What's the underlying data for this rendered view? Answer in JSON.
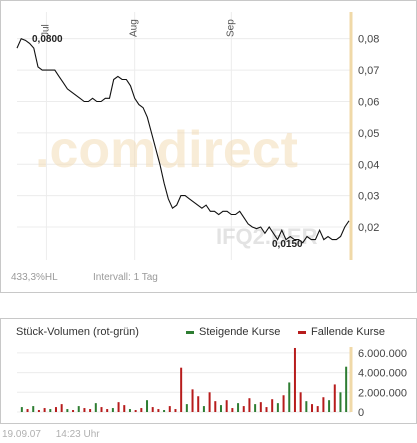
{
  "chart_data": [
    {
      "type": "line",
      "title": "",
      "x_ticks": [
        "Jul",
        "Aug",
        "Sep"
      ],
      "y_ticks": [
        "0,08",
        "0,07",
        "0,06",
        "0,05",
        "0,04",
        "0,03",
        "0,02"
      ],
      "ylim": [
        0.0095,
        0.0885
      ],
      "grid": true,
      "annotations": {
        "high": "0,0800",
        "low": "0,0150"
      },
      "series": [
        {
          "values": [
            0.077,
            0.08,
            0.0795,
            0.0785,
            0.077,
            0.071,
            0.07,
            0.07,
            0.07,
            0.07,
            0.068,
            0.066,
            0.064,
            0.063,
            0.062,
            0.061,
            0.06,
            0.06,
            0.061,
            0.06,
            0.06,
            0.061,
            0.061,
            0.067,
            0.068,
            0.067,
            0.067,
            0.065,
            0.061,
            0.059,
            0.058,
            0.055,
            0.05,
            0.045,
            0.04,
            0.034,
            0.029,
            0.026,
            0.027,
            0.03,
            0.03,
            0.029,
            0.028,
            0.027,
            0.026,
            0.027,
            0.025,
            0.025,
            0.024,
            0.025,
            0.025,
            0.024,
            0.024,
            0.025,
            0.023,
            0.021,
            0.02,
            0.0195,
            0.02,
            0.018,
            0.02,
            0.018,
            0.016,
            0.019,
            0.016,
            0.017,
            0.016,
            0.016,
            0.015,
            0.017,
            0.016,
            0.016,
            0.019,
            0.016,
            0.017,
            0.016,
            0.016,
            0.017,
            0.02,
            0.022
          ]
        }
      ],
      "watermark": {
        "brand": ".comdirect",
        "ticker": "IFQ2.BER"
      }
    },
    {
      "type": "bar",
      "title": "Stück-Volumen (rot-grün)",
      "y_ticks": [
        "6.000.000",
        "4.000.000",
        "2.000.000",
        "0"
      ],
      "ylim": [
        0,
        6600000
      ],
      "legend": [
        {
          "name": "Steigende Kurse",
          "color": "#2e7d32"
        },
        {
          "name": "Fallende Kurse",
          "color": "#b71c1c"
        }
      ],
      "bars": [
        {
          "v": 500000,
          "dir": "up"
        },
        {
          "v": 300000,
          "dir": "down"
        },
        {
          "v": 600000,
          "dir": "up"
        },
        {
          "v": 200000,
          "dir": "down"
        },
        {
          "v": 400000,
          "dir": "down"
        },
        {
          "v": 300000,
          "dir": "up"
        },
        {
          "v": 500000,
          "dir": "down"
        },
        {
          "v": 800000,
          "dir": "down"
        },
        {
          "v": 300000,
          "dir": "up"
        },
        {
          "v": 200000,
          "dir": "down"
        },
        {
          "v": 600000,
          "dir": "up"
        },
        {
          "v": 400000,
          "dir": "down"
        },
        {
          "v": 300000,
          "dir": "down"
        },
        {
          "v": 900000,
          "dir": "up"
        },
        {
          "v": 500000,
          "dir": "down"
        },
        {
          "v": 300000,
          "dir": "down"
        },
        {
          "v": 400000,
          "dir": "up"
        },
        {
          "v": 1000000,
          "dir": "down"
        },
        {
          "v": 700000,
          "dir": "down"
        },
        {
          "v": 300000,
          "dir": "up"
        },
        {
          "v": 200000,
          "dir": "down"
        },
        {
          "v": 400000,
          "dir": "down"
        },
        {
          "v": 1200000,
          "dir": "up"
        },
        {
          "v": 500000,
          "dir": "down"
        },
        {
          "v": 300000,
          "dir": "down"
        },
        {
          "v": 200000,
          "dir": "up"
        },
        {
          "v": 600000,
          "dir": "down"
        },
        {
          "v": 300000,
          "dir": "down"
        },
        {
          "v": 4500000,
          "dir": "down"
        },
        {
          "v": 800000,
          "dir": "up"
        },
        {
          "v": 2300000,
          "dir": "down"
        },
        {
          "v": 1600000,
          "dir": "down"
        },
        {
          "v": 600000,
          "dir": "up"
        },
        {
          "v": 2000000,
          "dir": "down"
        },
        {
          "v": 1100000,
          "dir": "down"
        },
        {
          "v": 700000,
          "dir": "up"
        },
        {
          "v": 1200000,
          "dir": "down"
        },
        {
          "v": 400000,
          "dir": "down"
        },
        {
          "v": 900000,
          "dir": "up"
        },
        {
          "v": 600000,
          "dir": "down"
        },
        {
          "v": 1400000,
          "dir": "down"
        },
        {
          "v": 800000,
          "dir": "up"
        },
        {
          "v": 1000000,
          "dir": "down"
        },
        {
          "v": 500000,
          "dir": "down"
        },
        {
          "v": 1300000,
          "dir": "down"
        },
        {
          "v": 900000,
          "dir": "up"
        },
        {
          "v": 1700000,
          "dir": "down"
        },
        {
          "v": 3000000,
          "dir": "up"
        },
        {
          "v": 6500000,
          "dir": "down"
        },
        {
          "v": 2000000,
          "dir": "down"
        },
        {
          "v": 1100000,
          "dir": "up"
        },
        {
          "v": 800000,
          "dir": "down"
        },
        {
          "v": 600000,
          "dir": "down"
        },
        {
          "v": 1500000,
          "dir": "down"
        },
        {
          "v": 1200000,
          "dir": "up"
        },
        {
          "v": 2800000,
          "dir": "down"
        },
        {
          "v": 2000000,
          "dir": "up"
        },
        {
          "v": 4600000,
          "dir": "up"
        }
      ]
    }
  ],
  "info": {
    "hl": "433,3%HL",
    "interval": "Intervall: 1 Tag"
  },
  "footer": {
    "date": "19.09.07",
    "time": "14:23 Uhr"
  }
}
